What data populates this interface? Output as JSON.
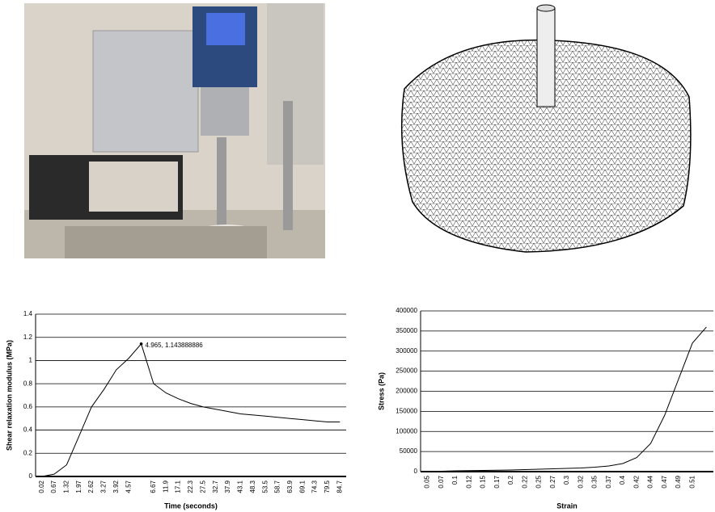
{
  "chart_data": [
    {
      "type": "line",
      "x_label": "Time (seconds)",
      "y_label": "Shear relaxation modulus (MPa)",
      "annotation": "4.965, 1.143888886",
      "categories": [
        "0.02",
        "0.67",
        "1.32",
        "1.97",
        "2.62",
        "3.27",
        "3.92",
        "4.57",
        null,
        "6.67",
        "11.9",
        "17.1",
        "22.3",
        "27.5",
        "32.7",
        "37.9",
        "43.1",
        "48.3",
        "53.5",
        "58.7",
        "63.9",
        "69.1",
        "74.3",
        "79.5",
        "84.7"
      ],
      "values": [
        0,
        0.02,
        0.1,
        0.35,
        0.6,
        0.75,
        0.92,
        1.02,
        1.143888886,
        0.8,
        0.72,
        0.67,
        0.63,
        0.6,
        0.58,
        0.56,
        0.54,
        0.53,
        0.52,
        0.51,
        0.5,
        0.49,
        0.48,
        0.47,
        0.47
      ],
      "color": "#000000",
      "ylim": [
        0,
        1.4
      ],
      "yticks": [
        0,
        0.2,
        0.4,
        0.6,
        0.8,
        1,
        1.2,
        1.4
      ],
      "grid": true
    },
    {
      "type": "line",
      "x_label": "Strain",
      "y_label": "Stress (Pa)",
      "categories": [
        "0.05",
        "0.07",
        "0.1",
        "0.12",
        "0.15",
        "0.17",
        "0.2",
        "0.22",
        "0.25",
        "0.27",
        "0.3",
        "0.32",
        "0.35",
        "0.37",
        "0.4",
        "0.42",
        "0.44",
        "0.47",
        "0.49",
        "0.51",
        null
      ],
      "values": [
        0,
        1000,
        2000,
        2500,
        3000,
        3500,
        4000,
        5000,
        6000,
        7000,
        8000,
        9000,
        11000,
        14000,
        20000,
        35000,
        70000,
        140000,
        230000,
        320000,
        360000
      ],
      "color": "#000000",
      "ylim": [
        0,
        400000
      ],
      "yticks": [
        0,
        50000,
        100000,
        150000,
        200000,
        250000,
        300000,
        350000,
        400000
      ],
      "grid": true
    }
  ]
}
